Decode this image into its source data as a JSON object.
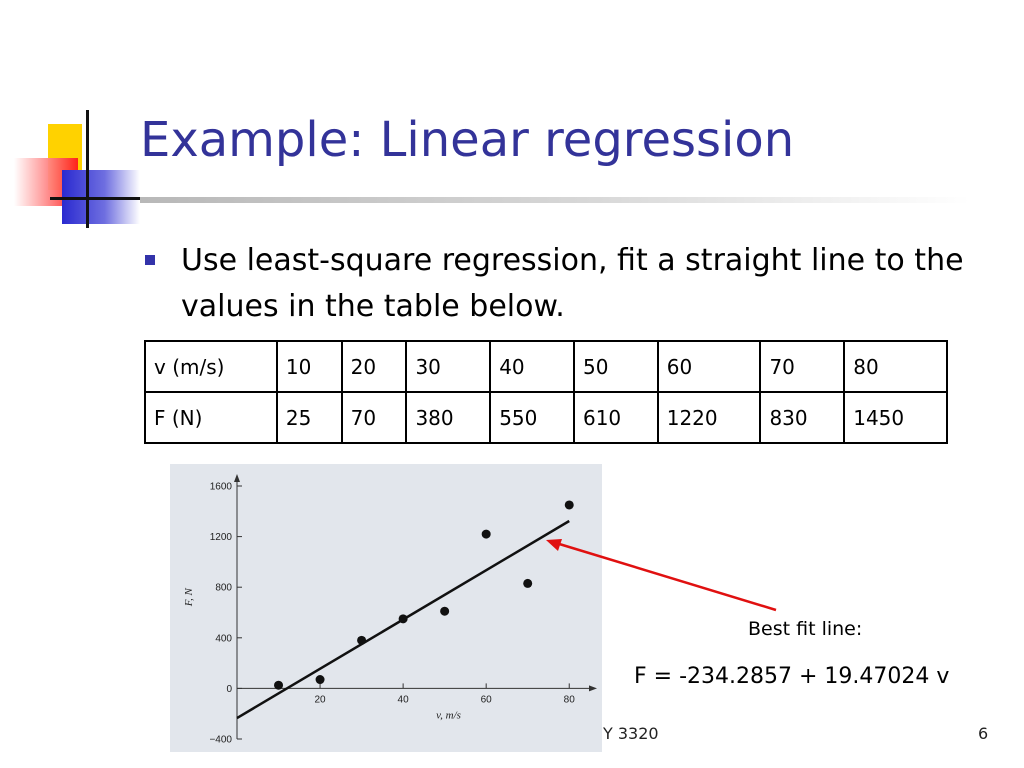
{
  "slide": {
    "title": "Example: Linear regression",
    "bullet": "Use least-square regression, fit a straight line to the values in the table below.",
    "footer_text": "Y 3320",
    "page_number": "6",
    "accent_color": "#333399"
  },
  "table": {
    "rows": [
      [
        "v (m/s)",
        "10",
        "20",
        "30",
        "40",
        "50",
        "60",
        "70",
        "80"
      ],
      [
        "F (N)",
        "25",
        "70",
        "380",
        "550",
        "610",
        "1220",
        "830",
        "1450"
      ]
    ]
  },
  "annotation": {
    "label": "Best fit line:",
    "equation": "F = -234.2857 + 19.47024 v",
    "arrow_color": "#e01010"
  },
  "chart_data": {
    "type": "scatter",
    "x": [
      10,
      20,
      30,
      40,
      50,
      60,
      70,
      80
    ],
    "y": [
      25,
      70,
      380,
      550,
      610,
      1220,
      830,
      1450
    ],
    "fit_line": {
      "intercept": -234.2857,
      "slope": 19.47024,
      "x_range": [
        0,
        80
      ]
    },
    "xlabel": "v, m/s",
    "ylabel": "F, N",
    "xlim": [
      0,
      85
    ],
    "ylim": [
      -400,
      1600
    ],
    "x_ticks": [
      "20",
      "40",
      "60",
      "80"
    ],
    "y_ticks": [
      "−400",
      "0",
      "400",
      "800",
      "1200",
      "1600"
    ],
    "grid": false
  }
}
